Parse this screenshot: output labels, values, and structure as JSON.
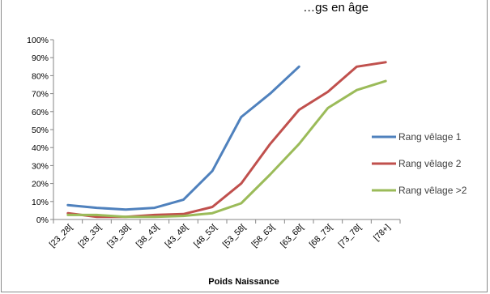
{
  "chart_data": {
    "type": "line",
    "title": "…gs en âge",
    "xlabel": "Poids Naissance",
    "ylabel": "",
    "categories": [
      "[23_28[",
      "[28_33[",
      "[33_38[",
      "[38_43[",
      "[43_48[",
      "[48_53[",
      "[53_58[",
      "[58_63[",
      "[63_68[",
      "[68_73[",
      "[73_78[",
      "[78+]"
    ],
    "y_ticks": [
      "0%",
      "10%",
      "20%",
      "30%",
      "40%",
      "50%",
      "60%",
      "70%",
      "80%",
      "90%",
      "100%"
    ],
    "ylim": [
      0,
      100
    ],
    "grid": false,
    "legend_position": "right",
    "series": [
      {
        "name": "Rang vêlage 1",
        "color": "#4f81bd",
        "values": [
          8,
          6.5,
          5.5,
          6.5,
          11,
          27,
          57,
          70,
          85,
          null,
          null,
          null
        ]
      },
      {
        "name": "Rang vêlage 2",
        "color": "#c0504d",
        "values": [
          3.5,
          1.5,
          1.5,
          2.5,
          3,
          7,
          20,
          42,
          61,
          71,
          85,
          87.5
        ]
      },
      {
        "name": "Rang vêlage >2",
        "color": "#9bbb59",
        "values": [
          2.5,
          2.5,
          1.5,
          1.5,
          2,
          3.5,
          9,
          25,
          42,
          62,
          72,
          77
        ]
      }
    ]
  }
}
